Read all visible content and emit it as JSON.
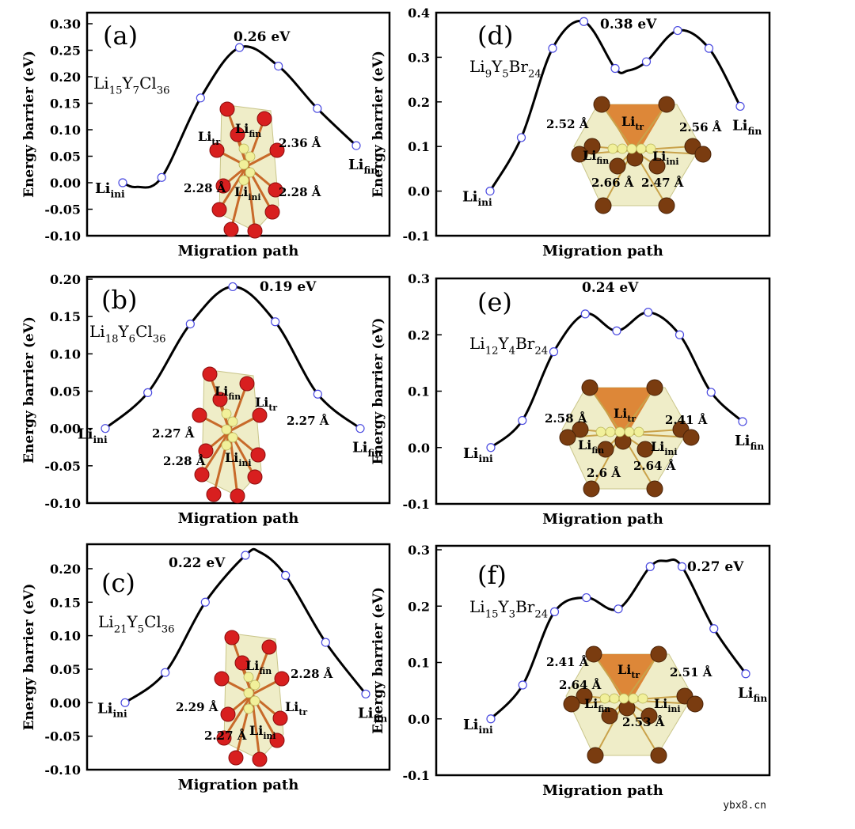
{
  "watermark": "ybx8.cn",
  "colors": {
    "curve": "#000000",
    "marker_fill": "#ffffff",
    "marker_stroke": "#4a4ae0",
    "site_label": "#1a1ab4",
    "cl_atom": "#d81f1f",
    "br_atom": "#7a3c10",
    "li_atom": "#f1f09a",
    "polyhedron": "#e9e7b6",
    "tetra_fill": "#d9741e"
  },
  "chart_data": [
    {
      "panel": "(a)",
      "type": "line",
      "formula": {
        "parts": [
          [
            "Li",
            ""
          ],
          [
            "15",
            "sub"
          ],
          [
            "Y",
            ""
          ],
          [
            "7",
            "sub"
          ],
          [
            "Cl",
            ""
          ],
          [
            "36",
            "sub"
          ]
        ]
      },
      "xlabel": "Migration path",
      "ylabel": "Energy barrier (eV)",
      "ylim": [
        -0.1,
        0.3
      ],
      "yticks": [
        "0.30",
        "0.25",
        "0.20",
        "0.15",
        "0.10",
        "0.05",
        "0.00",
        "-0.05",
        "-0.10"
      ],
      "ytick_values": [
        0.3,
        0.25,
        0.2,
        0.15,
        0.1,
        0.05,
        0.0,
        -0.05,
        -0.1
      ],
      "x": [
        0,
        1,
        2,
        3,
        4,
        5,
        6
      ],
      "values": [
        0.0,
        0.01,
        0.16,
        0.255,
        0.22,
        0.14,
        0.07
      ],
      "curve_control": [
        [
          0,
          0.0
        ],
        [
          0.35,
          -0.008
        ],
        [
          1,
          0.01
        ],
        [
          2,
          0.16
        ],
        [
          3,
          0.255
        ],
        [
          4,
          0.22
        ],
        [
          5,
          0.14
        ],
        [
          6,
          0.07
        ]
      ],
      "peak_label": "0.26 eV",
      "peak_index": 3,
      "anion": "Cl",
      "site_labels": {
        "ini": [
          "Li",
          "ini"
        ],
        "fin": [
          "Li",
          "fin"
        ],
        "tr": [
          "Li",
          "tr"
        ]
      },
      "bond_labels": [
        "2.36 Å",
        "2.28 Å",
        "2.28 Å"
      ]
    },
    {
      "panel": "(b)",
      "type": "line",
      "formula": {
        "parts": [
          [
            "Li",
            ""
          ],
          [
            "18",
            "sub"
          ],
          [
            "Y",
            ""
          ],
          [
            "6",
            "sub"
          ],
          [
            "Cl",
            ""
          ],
          [
            "36",
            "sub"
          ]
        ]
      },
      "xlabel": "Migration path",
      "ylabel": "Energy barrier (eV)",
      "ylim": [
        -0.1,
        0.2
      ],
      "yticks": [
        "0.20",
        "0.15",
        "0.10",
        "0.05",
        "0.00",
        "-0.05",
        "-0.10"
      ],
      "ytick_values": [
        0.2,
        0.15,
        0.1,
        0.05,
        0.0,
        -0.05,
        -0.1
      ],
      "x": [
        0,
        1,
        2,
        3,
        4,
        5,
        6
      ],
      "values": [
        0.0,
        0.048,
        0.14,
        0.19,
        0.143,
        0.046,
        0.0
      ],
      "curve_control": [
        [
          0,
          0.0
        ],
        [
          1,
          0.048
        ],
        [
          2,
          0.14
        ],
        [
          3,
          0.19
        ],
        [
          4,
          0.143
        ],
        [
          5,
          0.046
        ],
        [
          6,
          0.0
        ]
      ],
      "peak_label": "0.19 eV",
      "peak_index": 3,
      "anion": "Cl",
      "site_labels": {
        "ini": [
          "Li",
          "ini"
        ],
        "fin": [
          "Li",
          "fin"
        ],
        "tr": [
          "Li",
          "tr"
        ]
      },
      "bond_labels": [
        "2.27 Å",
        "2.27 Å",
        "2.28 Å"
      ]
    },
    {
      "panel": "(c)",
      "type": "line",
      "formula": {
        "parts": [
          [
            "Li",
            ""
          ],
          [
            "21",
            "sub"
          ],
          [
            "Y",
            ""
          ],
          [
            "5",
            "sub"
          ],
          [
            "Cl",
            ""
          ],
          [
            "36",
            "sub"
          ]
        ]
      },
      "xlabel": "Migration path",
      "ylabel": "Energy barrier (eV)",
      "ylim": [
        -0.1,
        0.22
      ],
      "yticks": [
        "0.20",
        "0.15",
        "0.10",
        "0.05",
        "0.00",
        "-0.05",
        "-0.10"
      ],
      "ytick_values": [
        0.2,
        0.15,
        0.1,
        0.05,
        0.0,
        -0.05,
        -0.1
      ],
      "x": [
        0,
        1,
        2,
        3,
        4,
        5,
        6
      ],
      "values": [
        0.0,
        0.045,
        0.15,
        0.22,
        0.19,
        0.09,
        0.013
      ],
      "curve_control": [
        [
          0,
          0.0
        ],
        [
          1,
          0.045
        ],
        [
          2,
          0.15
        ],
        [
          3,
          0.22
        ],
        [
          3.35,
          0.225
        ],
        [
          4,
          0.19
        ],
        [
          5,
          0.09
        ],
        [
          6,
          0.013
        ]
      ],
      "peak_label": "0.22 eV",
      "peak_index": 3,
      "anion": "Cl",
      "site_labels": {
        "ini": [
          "Li",
          "ini"
        ],
        "fin": [
          "Li",
          "fin"
        ],
        "tr": [
          "Li",
          "tr"
        ]
      },
      "bond_labels": [
        "2.28 Å",
        "2.29 Å",
        "2.27 Å"
      ]
    },
    {
      "panel": "(d)",
      "type": "line",
      "formula": {
        "parts": [
          [
            "Li",
            ""
          ],
          [
            "9",
            "sub"
          ],
          [
            "Y",
            ""
          ],
          [
            "5",
            "sub"
          ],
          [
            "Br",
            ""
          ],
          [
            "24",
            "sub"
          ]
        ]
      },
      "xlabel": "Migration path",
      "ylabel": "Energy barrier (eV)",
      "ylim": [
        -0.1,
        0.4
      ],
      "yticks": [
        "0.4",
        "0.3",
        "0.2",
        "0.1",
        "0.0",
        "-0.1"
      ],
      "ytick_values": [
        0.4,
        0.3,
        0.2,
        0.1,
        0.0,
        -0.1
      ],
      "x": [
        0,
        1,
        2,
        3,
        4,
        5,
        6,
        7,
        8
      ],
      "values": [
        0.0,
        0.12,
        0.32,
        0.38,
        0.275,
        0.29,
        0.36,
        0.32,
        0.19
      ],
      "curve_control": [
        [
          0,
          0.0
        ],
        [
          1,
          0.12
        ],
        [
          2,
          0.32
        ],
        [
          3,
          0.38
        ],
        [
          4,
          0.275
        ],
        [
          4.4,
          0.27
        ],
        [
          5,
          0.29
        ],
        [
          6,
          0.36
        ],
        [
          7,
          0.32
        ],
        [
          8,
          0.19
        ]
      ],
      "peak_label": "0.38 eV",
      "peak_index": 3,
      "anion": "Br",
      "site_labels": {
        "ini": [
          "Li",
          "ini"
        ],
        "fin": [
          "Li",
          "fin"
        ],
        "tr": [
          "Li",
          "tr"
        ]
      },
      "bond_labels": [
        "2.52 Å",
        "2.56 Å",
        "2.66 Å",
        "2.47 Å"
      ]
    },
    {
      "panel": "(e)",
      "type": "line",
      "formula": {
        "parts": [
          [
            "Li",
            ""
          ],
          [
            "12",
            "sub"
          ],
          [
            "Y",
            ""
          ],
          [
            "4",
            "sub"
          ],
          [
            "Br",
            ""
          ],
          [
            "24",
            "sub"
          ]
        ]
      },
      "xlabel": "Migration path",
      "ylabel": "Energy barrier (eV)",
      "ylim": [
        -0.1,
        0.3
      ],
      "yticks": [
        "0.3",
        "0.2",
        "0.1",
        "0.0",
        "-0.1"
      ],
      "ytick_values": [
        0.3,
        0.2,
        0.1,
        0.0,
        -0.1
      ],
      "x": [
        0,
        1,
        2,
        3,
        4,
        5,
        6,
        7,
        8
      ],
      "values": [
        0.0,
        0.048,
        0.17,
        0.237,
        0.207,
        0.24,
        0.2,
        0.098,
        0.046
      ],
      "curve_control": [
        [
          0,
          0.0
        ],
        [
          1,
          0.048
        ],
        [
          2,
          0.17
        ],
        [
          3,
          0.237
        ],
        [
          4,
          0.207
        ],
        [
          5,
          0.24
        ],
        [
          6,
          0.2
        ],
        [
          7,
          0.098
        ],
        [
          8,
          0.046
        ]
      ],
      "peak_label": "0.24 eV",
      "peak_index": 3,
      "anion": "Br",
      "site_labels": {
        "ini": [
          "Li",
          "ini"
        ],
        "fin": [
          "Li",
          "fin"
        ],
        "tr": [
          "Li",
          "tr"
        ]
      },
      "bond_labels": [
        "2.58 Å",
        "2.41 Å",
        "2.6 Å",
        "2.64 Å"
      ]
    },
    {
      "panel": "(f)",
      "type": "line",
      "formula": {
        "parts": [
          [
            "Li",
            ""
          ],
          [
            "15",
            "sub"
          ],
          [
            "Y",
            ""
          ],
          [
            "3",
            "sub"
          ],
          [
            "Br",
            ""
          ],
          [
            "24",
            "sub"
          ]
        ]
      },
      "xlabel": "Migration path",
      "ylabel": "Energy barrier (eV)",
      "ylim": [
        -0.1,
        0.3
      ],
      "yticks": [
        "0.3",
        "0.2",
        "0.1",
        "0.0",
        "-0.1"
      ],
      "ytick_values": [
        0.3,
        0.2,
        0.1,
        0.0,
        -0.1
      ],
      "x": [
        0,
        1,
        2,
        3,
        4,
        5,
        6,
        7,
        8
      ],
      "values": [
        0.0,
        0.06,
        0.19,
        0.215,
        0.195,
        0.27,
        0.27,
        0.16,
        0.08
      ],
      "curve_control": [
        [
          0,
          0.0
        ],
        [
          1,
          0.06
        ],
        [
          2,
          0.19
        ],
        [
          3,
          0.215
        ],
        [
          4,
          0.195
        ],
        [
          5,
          0.27
        ],
        [
          5.5,
          0.28
        ],
        [
          6,
          0.27
        ],
        [
          7,
          0.16
        ],
        [
          8,
          0.08
        ]
      ],
      "peak_label": "0.27 eV",
      "peak_index": 6,
      "anion": "Br",
      "site_labels": {
        "ini": [
          "Li",
          "ini"
        ],
        "fin": [
          "Li",
          "fin"
        ],
        "tr": [
          "Li",
          "tr"
        ]
      },
      "bond_labels": [
        "2.41 Å",
        "2.51 Å",
        "2.64 Å",
        "2.53 Å"
      ]
    }
  ]
}
